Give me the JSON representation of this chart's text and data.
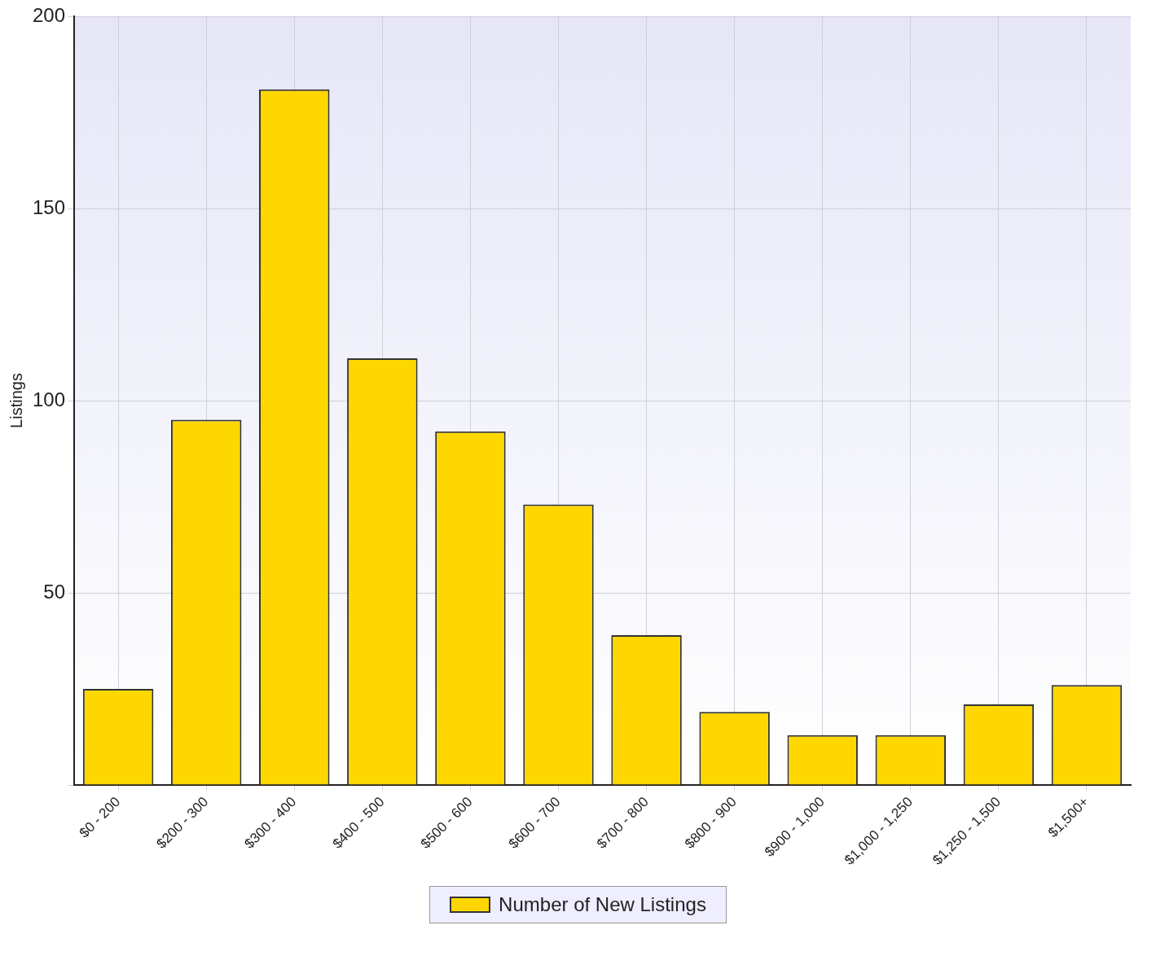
{
  "chart_data": {
    "type": "bar",
    "ylabel": "Listings",
    "categories": [
      "$0 - 200",
      "$200 - 300",
      "$300 - 400",
      "$400 - 500",
      "$500 - 600",
      "$600 - 700",
      "$700 - 800",
      "$800 - 900",
      "$900 - 1,000",
      "$1,000 - 1,250",
      "$1,250 - 1,500",
      "$1,500+"
    ],
    "series": [
      {
        "name": "Number of New Listings",
        "color": "#ffd700",
        "values": [
          25,
          95,
          181,
          111,
          92,
          73,
          39,
          19,
          13,
          13,
          21,
          26
        ]
      }
    ],
    "ylim": [
      0,
      200
    ],
    "yticks": [
      {
        "value": 0,
        "label": null
      },
      50,
      100,
      150,
      200
    ],
    "grid": true,
    "legend": "bottom"
  }
}
